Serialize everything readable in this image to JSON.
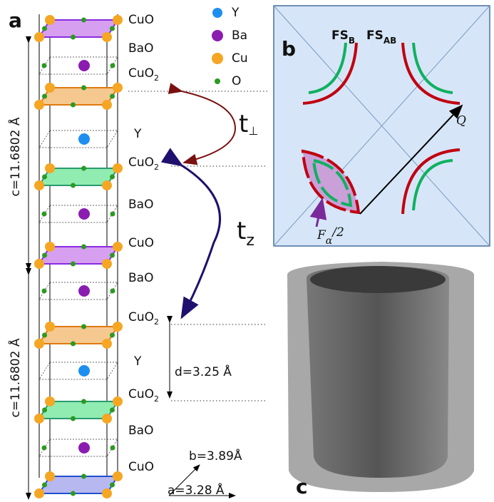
{
  "panels": {
    "a": "a",
    "b": "b",
    "c": "c"
  },
  "layers": [
    {
      "base": "CuO"
    },
    {
      "base": "BaO"
    },
    {
      "base": "CuO",
      "sub": "2"
    },
    {
      "base": "Y"
    },
    {
      "base": "CuO",
      "sub": "2"
    },
    {
      "base": "BaO"
    },
    {
      "base": "CuO"
    },
    {
      "base": "BaO"
    },
    {
      "base": "CuO",
      "sub": "2"
    },
    {
      "base": "Y"
    },
    {
      "base": "CuO",
      "sub": "2"
    },
    {
      "base": "BaO"
    },
    {
      "base": "CuO"
    }
  ],
  "legend": [
    "Y",
    "Ba",
    "Cu",
    "O"
  ],
  "lattice": {
    "c_top": "c=11.6802 Å",
    "c_bottom": "c=11.6802 Å",
    "d": "d=3.25 Å",
    "b": "b=3.89Å",
    "a": "a=3.28 Å"
  },
  "hopping": {
    "perp": {
      "base": "t",
      "sub": "⊥"
    },
    "z": {
      "base": "t",
      "sub": "z"
    }
  },
  "fermi": {
    "bonding": {
      "base": "FS",
      "sub": "B"
    },
    "antibonding": {
      "base": "FS",
      "sub": "AB"
    },
    "q": "Q",
    "frequency": {
      "base": "F",
      "sub": "α",
      "tail": "/2"
    }
  }
}
